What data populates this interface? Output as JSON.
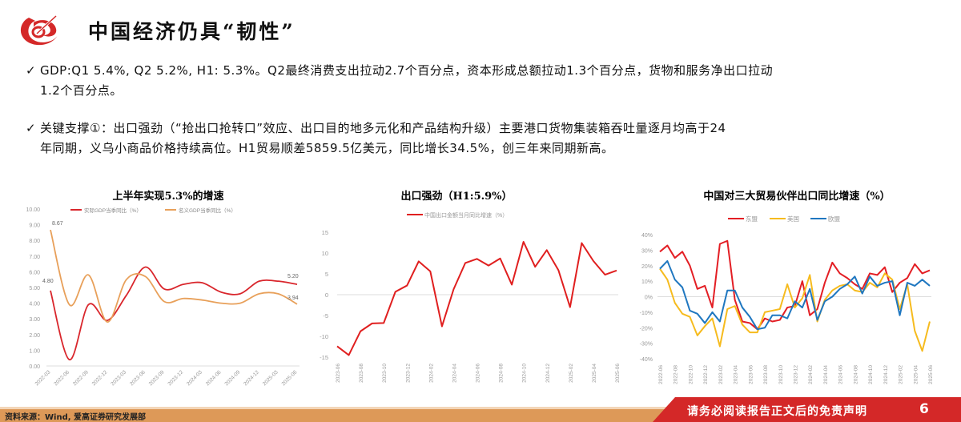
{
  "header": {
    "title": "中国经济仍具“韧性”",
    "logo": "brand-logo-icon"
  },
  "bullets": [
    {
      "icon": "check-icon",
      "line1": "GDP:Q1 5.4%, Q2 5.2%, H1: 5.3%。Q2最终消费支出拉动2.7个百分点，资本形成总额拉动1.3个百分点，货物和服务净出口拉动",
      "line2": "1.2个百分点。"
    },
    {
      "icon": "check-icon",
      "line1": "关键支撑①：出口强劲（“抢出口抢转口”效应、出口目的地多元化和产品结构升级）主要港口货物集装箱吞吐量逐月均高于24",
      "line2": "年同期，义乌小商品价格持续高位。H1贸易顺差5859.5亿美元，同比增长34.5%，创三年来同期新高。"
    }
  ],
  "chart_data": [
    {
      "type": "line",
      "title": "上半年实现5.3%的增速",
      "xlabel": "",
      "ylabel": "",
      "ylim": [
        0,
        10
      ],
      "yticks": [
        "0.00",
        "1.00",
        "2.00",
        "3.00",
        "4.00",
        "5.00",
        "6.00",
        "7.00",
        "8.00",
        "9.00",
        "10.00"
      ],
      "categories": [
        "2022-03",
        "2022-06",
        "2022-09",
        "2022-12",
        "2023-03",
        "2023-06",
        "2023-09",
        "2023-12",
        "2024-03",
        "2024-06",
        "2024-09",
        "2024-12",
        "2025-03",
        "2025-06"
      ],
      "series": [
        {
          "name": "实际GDP当季同比（%）",
          "color": "#d9262c",
          "values": [
            4.8,
            0.4,
            3.9,
            2.9,
            4.5,
            6.3,
            4.9,
            5.2,
            5.3,
            4.7,
            4.6,
            5.4,
            5.4,
            5.2
          ]
        },
        {
          "name": "名义GDP当季同比（%）",
          "color": "#e8a05a",
          "values": [
            8.67,
            3.9,
            5.8,
            2.8,
            5.5,
            5.7,
            4.1,
            4.3,
            4.2,
            4.0,
            4.0,
            4.6,
            4.6,
            3.94
          ]
        }
      ],
      "annotations": [
        {
          "label": "8.67",
          "series": 1,
          "index": 0
        },
        {
          "label": "4.80",
          "series": 0,
          "index": 0
        },
        {
          "label": "5.20",
          "series": 0,
          "index": 13
        },
        {
          "label": "3.94",
          "series": 1,
          "index": 13
        }
      ],
      "legend_position": "top",
      "grid": false
    },
    {
      "type": "line",
      "title": "出口强劲（H1:5.9%）",
      "xlabel": "",
      "ylabel": "",
      "ylim": [
        -15,
        15
      ],
      "yticks": [
        "-15",
        "-10",
        "-5",
        "0",
        "5",
        "10",
        "15"
      ],
      "x_tick_labels": [
        "2023-06",
        "2023-08",
        "2023-10",
        "2023-12",
        "2024-02",
        "2024-04",
        "2024-06",
        "2024-08",
        "2024-10",
        "2024-12",
        "2025-02",
        "2025-04",
        "2025-06"
      ],
      "categories": [
        "2023-06",
        "2023-07",
        "2023-08",
        "2023-09",
        "2023-10",
        "2023-11",
        "2023-12",
        "2024-01",
        "2024-02",
        "2024-03",
        "2024-04",
        "2024-05",
        "2024-06",
        "2024-07",
        "2024-08",
        "2024-09",
        "2024-10",
        "2024-11",
        "2024-12",
        "2025-01",
        "2025-02",
        "2025-03",
        "2025-04",
        "2025-05",
        "2025-06"
      ],
      "series": [
        {
          "name": "中国出口金额当月同比增速（%）",
          "color": "#e01f1f",
          "values": [
            -12.4,
            -14.5,
            -8.8,
            -6.9,
            -6.8,
            0.7,
            2.2,
            8.0,
            5.6,
            -7.6,
            1.3,
            7.6,
            8.6,
            7.0,
            8.7,
            2.4,
            12.7,
            6.7,
            10.7,
            5.9,
            -3.0,
            12.4,
            8.1,
            4.8,
            5.8
          ]
        }
      ],
      "legend_position": "top",
      "grid": false
    },
    {
      "type": "line",
      "title": "中国对三大贸易伙伴出口同比增速（%）",
      "xlabel": "",
      "ylabel": "",
      "ylim": [
        -40,
        40
      ],
      "yticks": [
        "-40%",
        "-30%",
        "-20%",
        "-10%",
        "0%",
        "10%",
        "20%",
        "30%",
        "40%"
      ],
      "x_tick_labels": [
        "2022-06",
        "2022-08",
        "2022-10",
        "2022-12",
        "2023-02",
        "2023-04",
        "2023-06",
        "2023-08",
        "2023-10",
        "2023-12",
        "2024-02",
        "2024-04",
        "2024-06",
        "2024-08",
        "2024-10",
        "2024-12",
        "2025-02",
        "2025-04",
        "2025-06"
      ],
      "categories": [
        "2022-06",
        "2022-07",
        "2022-08",
        "2022-09",
        "2022-10",
        "2022-11",
        "2022-12",
        "2023-01",
        "2023-02",
        "2023-03",
        "2023-04",
        "2023-05",
        "2023-06",
        "2023-07",
        "2023-08",
        "2023-09",
        "2023-10",
        "2023-11",
        "2023-12",
        "2024-01",
        "2024-02",
        "2024-03",
        "2024-04",
        "2024-05",
        "2024-06",
        "2024-07",
        "2024-08",
        "2024-09",
        "2024-10",
        "2024-11",
        "2024-12",
        "2025-01",
        "2025-02",
        "2025-03",
        "2025-04",
        "2025-05",
        "2025-06"
      ],
      "series": [
        {
          "name": "东盟",
          "color": "#e31e24",
          "values": [
            29,
            33,
            25,
            29,
            20,
            5,
            7,
            -7,
            34,
            36,
            -2,
            -16,
            -17,
            -21,
            -14,
            -16,
            -15,
            -7,
            -6,
            10,
            -12,
            -8,
            9,
            22,
            15,
            12,
            8,
            5,
            15,
            14,
            19,
            3,
            9,
            12,
            21,
            15,
            17
          ]
        },
        {
          "name": "美国",
          "color": "#f6bb1e",
          "values": [
            18,
            11,
            -4,
            -11,
            -13,
            -25,
            -19,
            -14,
            -32,
            -8,
            -6,
            -18,
            -23,
            -23,
            -10,
            -9,
            -8,
            8,
            -7,
            -1,
            14,
            -16,
            -2,
            4,
            7,
            8,
            4,
            3,
            9,
            6,
            15,
            11,
            -8,
            8,
            -22,
            -35,
            -16
          ]
        },
        {
          "name": "欧盟",
          "color": "#1f77c0",
          "values": [
            18,
            23,
            11,
            6,
            -9,
            -11,
            -17,
            -10,
            -16,
            4,
            4,
            -7,
            -13,
            -21,
            -20,
            -12,
            -12,
            -14,
            -3,
            -7,
            5,
            -15,
            -3,
            0,
            5,
            8,
            13,
            2,
            13,
            7,
            9,
            10,
            -12,
            9,
            7,
            11,
            7
          ]
        }
      ],
      "legend_position": "top",
      "grid": false
    }
  ],
  "footer": {
    "source": "资料来源：Wind, 爱高证券研究发展部",
    "disclaimer": "请务必阅读报告正文后的免责声明",
    "page_number": "6",
    "colors": {
      "orange": "#dd9958",
      "red": "#d42828"
    }
  }
}
